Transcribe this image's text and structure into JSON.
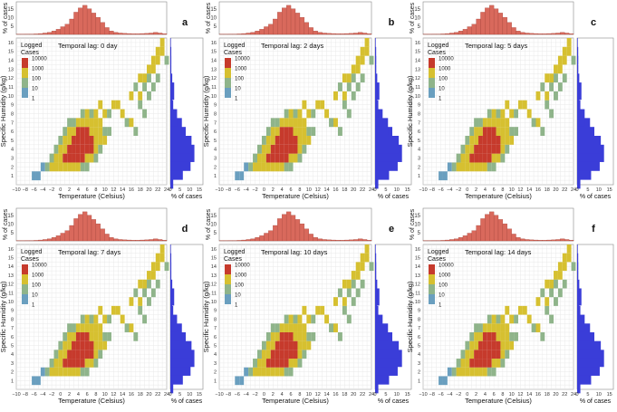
{
  "figure": {
    "axis_labels": {
      "x_main": "Temperature (Celsius)",
      "y_main": "Specific Humidity (g/kg)",
      "top_hist_y": "% of cases",
      "side_hist_x": "% of cases"
    },
    "legend": {
      "title_line1": "Logged",
      "title_line2": "Cases",
      "entries": [
        "10000",
        "1000",
        "100",
        "10",
        "1"
      ]
    },
    "colors": {
      "heat_low": "#6a9fbf",
      "heat_mid": "#d6c030",
      "heat_high": "#c63a2c",
      "top_hist": "#d9695c",
      "side_hist": "#3a3dd8",
      "grid": "#e4e4e4"
    },
    "x_ticks": [
      "−10",
      "−8",
      "−6",
      "−4",
      "−2",
      "0",
      "2",
      "4",
      "6",
      "8",
      "10",
      "12",
      "14",
      "16",
      "18",
      "20",
      "22",
      "24"
    ],
    "y_ticks": [
      "1",
      "2",
      "3",
      "4",
      "5",
      "6",
      "7",
      "8",
      "9",
      "10",
      "11",
      "12",
      "13",
      "14",
      "15",
      "16"
    ],
    "top_hist_ticks": [
      "5",
      "10",
      "15"
    ],
    "side_hist_ticks": [
      "0",
      "5",
      "10",
      "15"
    ],
    "panels": [
      {
        "letter": "a",
        "lag_label": "Temporal lag: 0 day"
      },
      {
        "letter": "b",
        "lag_label": "Temporal lag: 2 days"
      },
      {
        "letter": "c",
        "lag_label": "Temporal lag: 5 days"
      },
      {
        "letter": "d",
        "lag_label": "Temporal lag: 7 days"
      },
      {
        "letter": "e",
        "lag_label": "Temporal lag: 10 days"
      },
      {
        "letter": "f",
        "lag_label": "Temporal lag: 14 days"
      }
    ]
  },
  "chart_data": {
    "type": "heatmap",
    "x_range": [
      -10,
      24
    ],
    "y_range": [
      0,
      16.5
    ],
    "color_scale": "log10 of cases",
    "top_hist": {
      "bins": [
        -10,
        -9,
        -8,
        -7,
        -6,
        -5,
        -4,
        -3,
        -2,
        -1,
        0,
        1,
        2,
        3,
        4,
        5,
        6,
        7,
        8,
        9,
        10,
        11,
        12,
        13,
        14,
        15,
        16,
        17,
        18,
        19,
        20,
        21,
        22,
        23
      ],
      "values": [
        0.1,
        0.1,
        0.2,
        0.2,
        0.3,
        0.5,
        0.8,
        1.2,
        2,
        3,
        4.5,
        6,
        9,
        13,
        15.5,
        17,
        15,
        12.5,
        10,
        7,
        4,
        2,
        1.2,
        0.8,
        0.6,
        0.5,
        0.4,
        0.4,
        0.5,
        0.6,
        0.8,
        1.2,
        0.8,
        0.4
      ]
    },
    "side_hist": {
      "bins": [
        1,
        2,
        3,
        4,
        5,
        6,
        7,
        8,
        9,
        10,
        11,
        12,
        13,
        14,
        15,
        16
      ],
      "values": [
        1.5,
        6.5,
        10.5,
        12.5,
        11,
        8,
        6,
        3.5,
        1.5,
        1,
        2,
        1,
        0.5,
        0.5,
        0.5,
        0.3
      ]
    },
    "cells": [
      [
        -6,
        1,
        1
      ],
      [
        -5,
        1,
        1
      ],
      [
        -4,
        2,
        1
      ],
      [
        -3,
        2,
        2
      ],
      [
        -2,
        2,
        3
      ],
      [
        -2,
        3,
        2
      ],
      [
        -1,
        2,
        3
      ],
      [
        -1,
        3,
        3
      ],
      [
        -1,
        4,
        2
      ],
      [
        0,
        2,
        3
      ],
      [
        0,
        3,
        3
      ],
      [
        0,
        4,
        3
      ],
      [
        0,
        5,
        2
      ],
      [
        1,
        2,
        3
      ],
      [
        1,
        3,
        4
      ],
      [
        1,
        4,
        3
      ],
      [
        1,
        5,
        3
      ],
      [
        1,
        6,
        2
      ],
      [
        2,
        2,
        3
      ],
      [
        2,
        3,
        4
      ],
      [
        2,
        4,
        4
      ],
      [
        2,
        5,
        3
      ],
      [
        2,
        6,
        3
      ],
      [
        2,
        7,
        2
      ],
      [
        3,
        2,
        3
      ],
      [
        3,
        3,
        4
      ],
      [
        3,
        4,
        4
      ],
      [
        3,
        5,
        4
      ],
      [
        3,
        6,
        3
      ],
      [
        3,
        7,
        2
      ],
      [
        4,
        2,
        3
      ],
      [
        4,
        3,
        4
      ],
      [
        4,
        4,
        4
      ],
      [
        4,
        5,
        4
      ],
      [
        4,
        6,
        4
      ],
      [
        4,
        7,
        3
      ],
      [
        5,
        2,
        2
      ],
      [
        5,
        3,
        4
      ],
      [
        5,
        4,
        4
      ],
      [
        5,
        5,
        4
      ],
      [
        5,
        6,
        4
      ],
      [
        5,
        7,
        3
      ],
      [
        5,
        8,
        2
      ],
      [
        6,
        2,
        2
      ],
      [
        6,
        3,
        3
      ],
      [
        6,
        4,
        4
      ],
      [
        6,
        5,
        4
      ],
      [
        6,
        6,
        4
      ],
      [
        6,
        7,
        3
      ],
      [
        6,
        8,
        3
      ],
      [
        7,
        3,
        3
      ],
      [
        7,
        4,
        4
      ],
      [
        7,
        5,
        4
      ],
      [
        7,
        6,
        3
      ],
      [
        7,
        7,
        3
      ],
      [
        7,
        8,
        2
      ],
      [
        8,
        3,
        2
      ],
      [
        8,
        4,
        3
      ],
      [
        8,
        5,
        3
      ],
      [
        8,
        6,
        3
      ],
      [
        8,
        7,
        3
      ],
      [
        8,
        8,
        3
      ],
      [
        9,
        4,
        2
      ],
      [
        9,
        5,
        3
      ],
      [
        9,
        6,
        3
      ],
      [
        9,
        7,
        3
      ],
      [
        9,
        9,
        3
      ],
      [
        10,
        5,
        3
      ],
      [
        10,
        6,
        2
      ],
      [
        10,
        8,
        3
      ],
      [
        11,
        6,
        2
      ],
      [
        11,
        8,
        2
      ],
      [
        12,
        9,
        3
      ],
      [
        13,
        9,
        3
      ],
      [
        14,
        8,
        3
      ],
      [
        15,
        7,
        2
      ],
      [
        16,
        7,
        3
      ],
      [
        17,
        6,
        2
      ],
      [
        16,
        10,
        3
      ],
      [
        17,
        11,
        2
      ],
      [
        18,
        9,
        2
      ],
      [
        18,
        10,
        3
      ],
      [
        18,
        12,
        3
      ],
      [
        19,
        8,
        2
      ],
      [
        19,
        11,
        2
      ],
      [
        19,
        12,
        3
      ],
      [
        20,
        10,
        2
      ],
      [
        20,
        13,
        3
      ],
      [
        20,
        12,
        2
      ],
      [
        21,
        11,
        2
      ],
      [
        21,
        13,
        3
      ],
      [
        21,
        14,
        3
      ],
      [
        22,
        14,
        3
      ],
      [
        22,
        15,
        3
      ],
      [
        22,
        12,
        2
      ],
      [
        23,
        15,
        3
      ],
      [
        23,
        16,
        3
      ],
      [
        24,
        14,
        2
      ]
    ]
  }
}
